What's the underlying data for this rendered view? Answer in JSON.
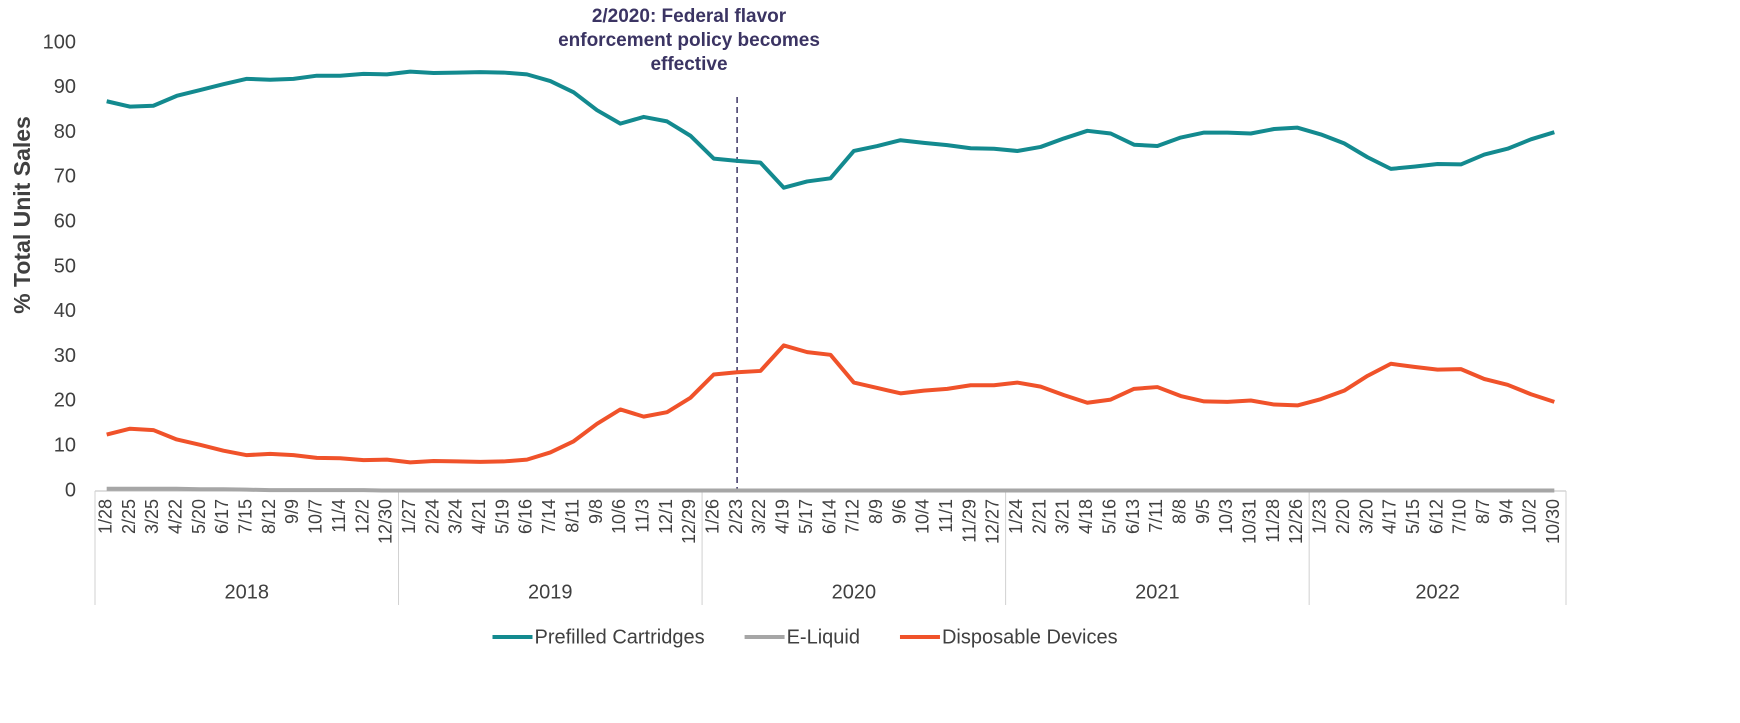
{
  "chart_data": {
    "type": "line",
    "y_label": "% Total Unit Sales",
    "ylim": [
      0,
      100
    ],
    "yticks": [
      0,
      10,
      20,
      30,
      40,
      50,
      60,
      70,
      80,
      90,
      100
    ],
    "categories": [
      "1/28",
      "2/25",
      "3/25",
      "4/22",
      "5/20",
      "6/17",
      "7/15",
      "8/12",
      "9/9",
      "10/7",
      "11/4",
      "12/2",
      "12/30",
      "1/27",
      "2/24",
      "3/24",
      "4/21",
      "5/19",
      "6/16",
      "7/14",
      "8/11",
      "9/8",
      "10/6",
      "11/3",
      "12/1",
      "12/29",
      "1/26",
      "2/23",
      "3/22",
      "4/19",
      "5/17",
      "6/14",
      "7/12",
      "8/9",
      "9/6",
      "10/4",
      "11/1",
      "11/29",
      "12/27",
      "1/24",
      "2/21",
      "3/21",
      "4/18",
      "5/16",
      "6/13",
      "7/11",
      "8/8",
      "9/5",
      "10/3",
      "10/31",
      "11/28",
      "12/26",
      "1/23",
      "2/20",
      "3/20",
      "4/17",
      "5/15",
      "6/12",
      "7/10",
      "8/7",
      "9/4",
      "10/2",
      "10/30"
    ],
    "groups": [
      {
        "name": "2018",
        "size": 13
      },
      {
        "name": "2019",
        "size": 13
      },
      {
        "name": "2020",
        "size": 13
      },
      {
        "name": "2021",
        "size": 13
      },
      {
        "name": "2022",
        "size": 11
      }
    ],
    "series": [
      {
        "name": "Prefilled Cartridges",
        "color": "#138a8f",
        "values": [
          87,
          85.8,
          86,
          88.2,
          89.5,
          90.8,
          92,
          91.8,
          92,
          92.7,
          92.7,
          93.1,
          93,
          93.6,
          93.3,
          93.4,
          93.5,
          93.4,
          93,
          91.5,
          89,
          85,
          82,
          83.5,
          82.5,
          79.3,
          74.2,
          73.7,
          73.3,
          67.7,
          69.1,
          69.8,
          75.9,
          77,
          78.3,
          77.7,
          77.2,
          76.5,
          76.4,
          75.9,
          76.8,
          78.7,
          80.4,
          79.8,
          77.3,
          77,
          78.9,
          80,
          80,
          79.8,
          80.8,
          81.1,
          79.6,
          77.6,
          74.5,
          71.9,
          72.4,
          73,
          72.9,
          75.1,
          76.4,
          78.5,
          80.1
        ]
      },
      {
        "name": "E-Liquid",
        "color": "#a6a6a6",
        "values": [
          0.5,
          0.5,
          0.5,
          0.5,
          0.4,
          0.4,
          0.3,
          0.2,
          0.2,
          0.2,
          0.2,
          0.2,
          0.1,
          0.1,
          0.1,
          0.1,
          0.1,
          0.1,
          0.1,
          0.1,
          0.1,
          0.1,
          0.1,
          0.1,
          0.1,
          0.1,
          0.1,
          0.1,
          0.1,
          0.1,
          0.1,
          0.1,
          0.1,
          0.1,
          0.1,
          0.1,
          0.1,
          0.1,
          0.1,
          0.1,
          0.1,
          0.1,
          0.1,
          0.1,
          0.1,
          0.1,
          0.1,
          0.1,
          0.1,
          0.1,
          0.1,
          0.1,
          0.1,
          0.1,
          0.1,
          0.1,
          0.1,
          0.1,
          0.1,
          0.1,
          0.1,
          0.1,
          0.1
        ]
      },
      {
        "name": "Disposable Devices",
        "color": "#f0522a",
        "values": [
          12.6,
          13.9,
          13.6,
          11.5,
          10.3,
          9,
          8,
          8.3,
          8,
          7.4,
          7.3,
          6.9,
          7,
          6.4,
          6.7,
          6.6,
          6.5,
          6.6,
          7,
          8.6,
          11.1,
          15,
          18.2,
          16.6,
          17.6,
          20.8,
          26,
          26.5,
          26.8,
          32.5,
          31,
          30.4,
          24.2,
          23,
          21.8,
          22.4,
          22.8,
          23.6,
          23.6,
          24.2,
          23.3,
          21.4,
          19.7,
          20.4,
          22.8,
          23.2,
          21.2,
          20,
          19.9,
          20.2,
          19.3,
          19.1,
          20.5,
          22.4,
          25.7,
          28.4,
          27.7,
          27.1,
          27.2,
          25,
          23.7,
          21.6,
          19.9
        ]
      }
    ],
    "annotation": {
      "x": "2/23",
      "text": [
        "2/2020: Federal flavor",
        "enforcement policy becomes",
        "effective"
      ],
      "color": "#3b3463"
    }
  }
}
